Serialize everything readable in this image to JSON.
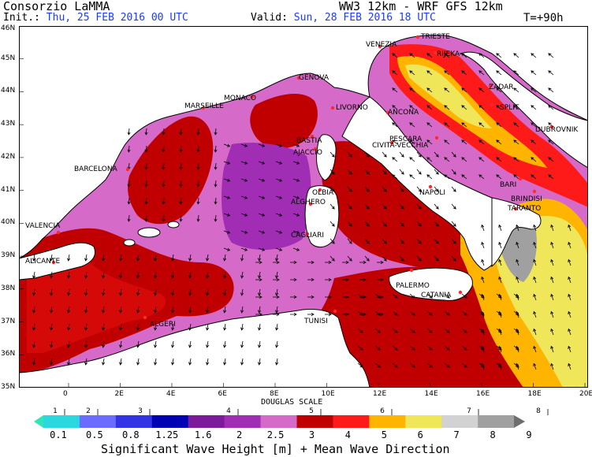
{
  "header": {
    "org": "Consorzio LaMMA",
    "model": "WW3 12km - WRF GFS 12km",
    "init_label": "Init.:",
    "init_value": "Thu, 25 FEB 2016  00 UTC",
    "valid_label": "Valid:",
    "valid_value": "Sun, 28 FEB 2016  18 UTC",
    "step": "T=+90h"
  },
  "map": {
    "lat_labels": [
      "46N",
      "45N",
      "44N",
      "43N",
      "42N",
      "41N",
      "40N",
      "39N",
      "38N",
      "37N",
      "36N",
      "35N"
    ],
    "lon_labels": [
      "0",
      "2E",
      "4E",
      "6E",
      "8E",
      "10E",
      "12E",
      "14E",
      "16E",
      "18E",
      "20E"
    ],
    "cities": [
      "TRIESTE",
      "VENEZIA",
      "RIJEKA",
      "GENOVA",
      "MONACO",
      "MARSEILLE",
      "LIVORNO",
      "ZADAR",
      "ANCONA",
      "SPLIT",
      "DUBROVNIK",
      "BASTIA",
      "AJACCIO",
      "PESCARA",
      "CIVITA-VECCHIA",
      "BARCELONA",
      "OLBIA",
      "ALGHERO",
      "NAPOLI",
      "BARI",
      "BRINDISI",
      "VALENCIA",
      "TARANTO",
      "CAGLIARI",
      "ALICANTE",
      "PALERMO",
      "CATANIA",
      "ALGERI",
      "TUNISI"
    ],
    "scale_label": "DOUGLAS SCALE",
    "colors": {
      "land": "#ffffff",
      "coast": "#000000",
      "sea_background": "#d56ac8"
    }
  },
  "legend": {
    "douglas": [
      "1",
      "2",
      "3",
      "4",
      "5",
      "6",
      "7",
      "8"
    ],
    "thresholds": [
      "0.1",
      "0.5",
      "0.8",
      "1.25",
      "1.6",
      "2",
      "2.5",
      "3",
      "4",
      "5",
      "6",
      "7",
      "8",
      "9"
    ],
    "colors": [
      "#30e6b4",
      "#2cd8e0",
      "#6b6bff",
      "#3232e6",
      "#0000b4",
      "#7d1a9c",
      "#a02db4",
      "#d56ac8",
      "#c00000",
      "#ff1a1a",
      "#ffb400",
      "#f0e65a",
      "#d2d2d2",
      "#a0a0a0",
      "#6e6e6e"
    ],
    "title": "Significant Wave Height [m] + Mean Wave Direction"
  }
}
